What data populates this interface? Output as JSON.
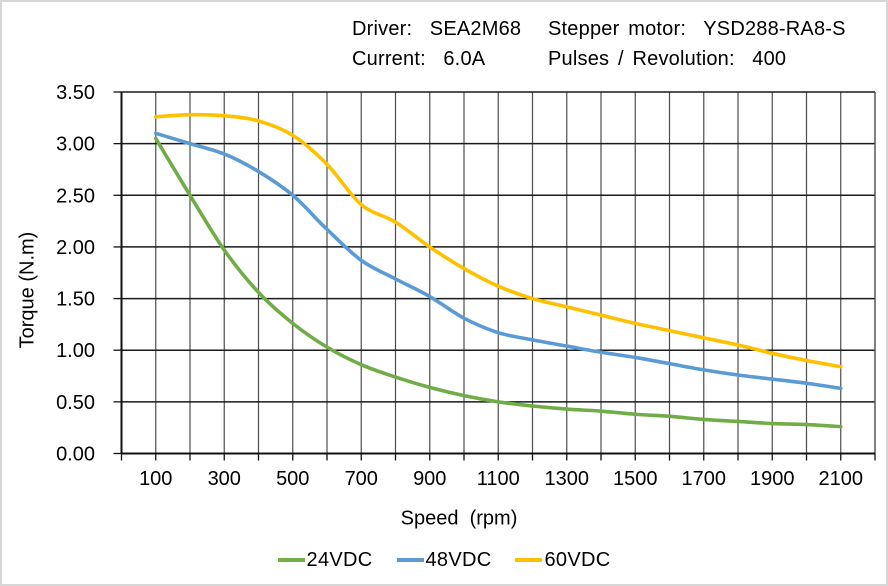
{
  "frame": {
    "border_color": "#d7d7d7",
    "background": "#ffffff"
  },
  "header": {
    "rows": [
      {
        "col1": "Driver:  SEA2M68",
        "col2": "Stepper motor:  YSD288-RA8-S"
      },
      {
        "col1": "Current:  6.0A",
        "col2": "Pulses / Revolution:  400"
      }
    ]
  },
  "chart_data": {
    "type": "line",
    "title": "",
    "xlabel": "Speed  (rpm)",
    "ylabel": "Torque (N.m)",
    "xlim": [
      0,
      2200
    ],
    "ylim": [
      0,
      3.5
    ],
    "x_gridline_step": 100,
    "y_gridline_step": 0.5,
    "x_tick_labels": [
      100,
      300,
      500,
      700,
      900,
      1100,
      1300,
      1500,
      1700,
      1900,
      2100
    ],
    "y_ticks": [
      0.0,
      0.5,
      1.0,
      1.5,
      2.0,
      2.5,
      3.0,
      3.5
    ],
    "grid": true,
    "legend_position": "bottom",
    "x": [
      100,
      200,
      300,
      400,
      500,
      600,
      700,
      800,
      900,
      1000,
      1100,
      1200,
      1300,
      1400,
      1500,
      1600,
      1700,
      1800,
      1900,
      2000,
      2100
    ],
    "series": [
      {
        "name": "24VDC",
        "color": "#70AD47",
        "values": [
          3.05,
          2.5,
          1.97,
          1.56,
          1.26,
          1.03,
          0.86,
          0.74,
          0.64,
          0.56,
          0.5,
          0.46,
          0.43,
          0.41,
          0.38,
          0.36,
          0.33,
          0.31,
          0.29,
          0.28,
          0.26
        ]
      },
      {
        "name": "48VDC",
        "color": "#5B9BD5",
        "values": [
          3.1,
          3.0,
          2.9,
          2.73,
          2.5,
          2.17,
          1.87,
          1.69,
          1.52,
          1.31,
          1.17,
          1.1,
          1.04,
          0.98,
          0.93,
          0.87,
          0.81,
          0.76,
          0.72,
          0.68,
          0.63
        ]
      },
      {
        "name": "60VDC",
        "color": "#FFC000",
        "values": [
          3.26,
          3.28,
          3.27,
          3.22,
          3.08,
          2.8,
          2.41,
          2.24,
          2.0,
          1.79,
          1.62,
          1.5,
          1.42,
          1.34,
          1.26,
          1.19,
          1.12,
          1.05,
          0.97,
          0.9,
          0.84
        ]
      }
    ]
  },
  "style": {
    "grid_v_color": "#4d4d4d",
    "grid_h_color": "#1a1a1a",
    "axis_color": "#111111",
    "text_color": "#000000",
    "tick_label_size": 20
  }
}
